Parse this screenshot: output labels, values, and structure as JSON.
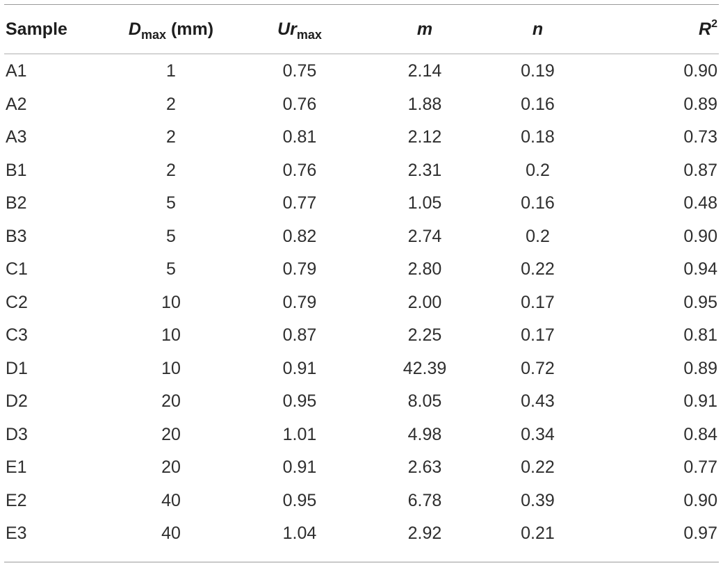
{
  "table": {
    "headers": {
      "sample": "Sample",
      "dmax_symbol": "D",
      "dmax_sub": "max",
      "dmax_unit": " (mm)",
      "urmax_symbol": "Ur",
      "urmax_sub": "max",
      "m": "m",
      "n": "n",
      "r2_symbol": "R",
      "r2_sup": "2"
    },
    "rows": [
      [
        "A1",
        "1",
        "0.75",
        "2.14",
        "0.19",
        "0.90"
      ],
      [
        "A2",
        "2",
        "0.76",
        "1.88",
        "0.16",
        "0.89"
      ],
      [
        "A3",
        "2",
        "0.81",
        "2.12",
        "0.18",
        "0.73"
      ],
      [
        "B1",
        "2",
        "0.76",
        "2.31",
        "0.2",
        "0.87"
      ],
      [
        "B2",
        "5",
        "0.77",
        "1.05",
        "0.16",
        "0.48"
      ],
      [
        "B3",
        "5",
        "0.82",
        "2.74",
        "0.2",
        "0.90"
      ],
      [
        "C1",
        "5",
        "0.79",
        "2.80",
        "0.22",
        "0.94"
      ],
      [
        "C2",
        "10",
        "0.79",
        "2.00",
        "0.17",
        "0.95"
      ],
      [
        "C3",
        "10",
        "0.87",
        "2.25",
        "0.17",
        "0.81"
      ],
      [
        "D1",
        "10",
        "0.91",
        "42.39",
        "0.72",
        "0.89"
      ],
      [
        "D2",
        "20",
        "0.95",
        "8.05",
        "0.43",
        "0.91"
      ],
      [
        "D3",
        "20",
        "1.01",
        "4.98",
        "0.34",
        "0.84"
      ],
      [
        "E1",
        "20",
        "0.91",
        "2.63",
        "0.22",
        "0.77"
      ],
      [
        "E2",
        "40",
        "0.95",
        "6.78",
        "0.39",
        "0.90"
      ],
      [
        "E3",
        "40",
        "1.04",
        "2.92",
        "0.21",
        "0.97"
      ]
    ]
  }
}
